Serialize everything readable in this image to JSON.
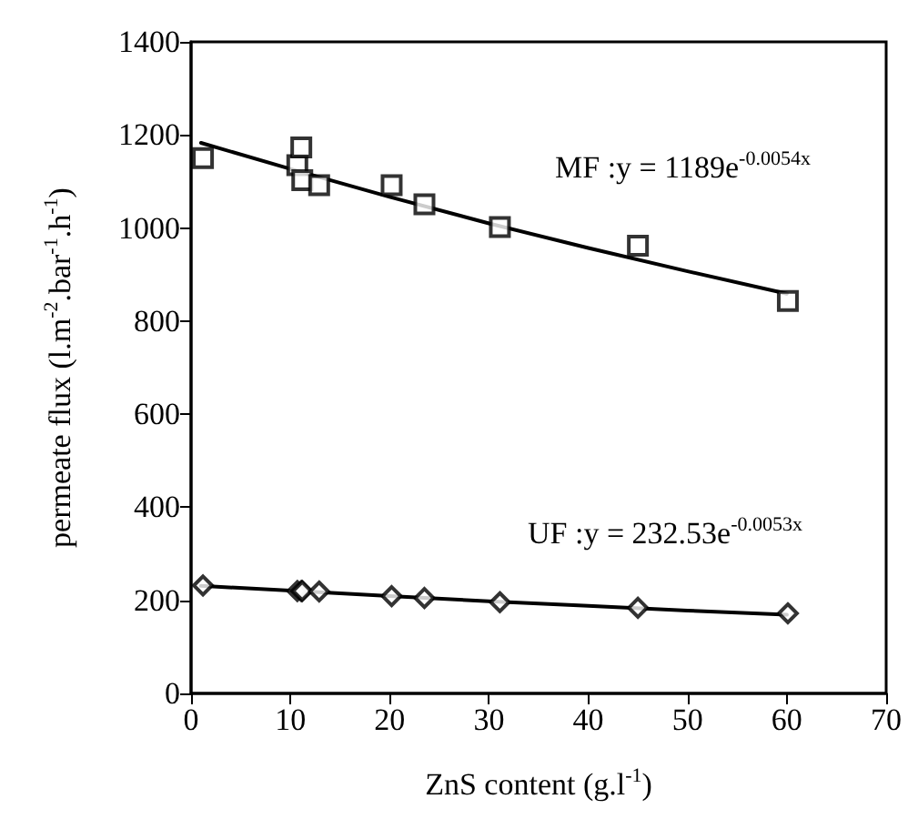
{
  "chart_data": {
    "type": "scatter",
    "xlabel": "ZnS content (g.l$^{-1}$)",
    "ylabel": "permeate flux (l.m$^{-2}$.bar$^{-1}$.h$^{-1}$)",
    "xlim": [
      0,
      70
    ],
    "xticks": [
      0,
      10,
      20,
      30,
      40,
      50,
      60,
      70
    ],
    "ylim": [
      0,
      1400
    ],
    "yticks": [
      0,
      200,
      400,
      600,
      800,
      1000,
      1200,
      1400
    ],
    "grid": false,
    "series": [
      {
        "marker": "square",
        "color": "#000000",
        "x": [
          1.2,
          10.7,
          11.1,
          11.2,
          12.9,
          20.2,
          23.5,
          31.1,
          45.0,
          60.1
        ],
        "values": [
          1150,
          1135,
          1173,
          1103,
          1092,
          1092,
          1051,
          1002,
          962,
          843
        ]
      },
      {
        "type": "line",
        "marker": "none",
        "line_style": "solid",
        "color": "#000000",
        "x": [
          1,
          10,
          20,
          30,
          40,
          50,
          60
        ],
        "values": [
          1183,
          1127,
          1067,
          1010,
          957,
          907,
          859
        ]
      },
      {
        "marker": "diamond",
        "color": "#000000",
        "x": [
          1.2,
          10.7,
          11.1,
          11.2,
          12.9,
          20.2,
          23.5,
          31.1,
          45.0,
          60.1
        ],
        "values": [
          232,
          220,
          220,
          220,
          219,
          209,
          205,
          196,
          184,
          172
        ]
      },
      {
        "type": "line",
        "marker": "none",
        "line_style": "solid",
        "color": "#000000",
        "x": [
          1,
          10,
          20,
          30,
          40,
          50,
          60
        ],
        "values": [
          231,
          221,
          209,
          198,
          188,
          178,
          169
        ]
      }
    ],
    "annotations": [
      "MF :y = 1189e$^{-0.0054x}$",
      "UF :y = 232.53e$^{-0.0053x}$"
    ]
  }
}
